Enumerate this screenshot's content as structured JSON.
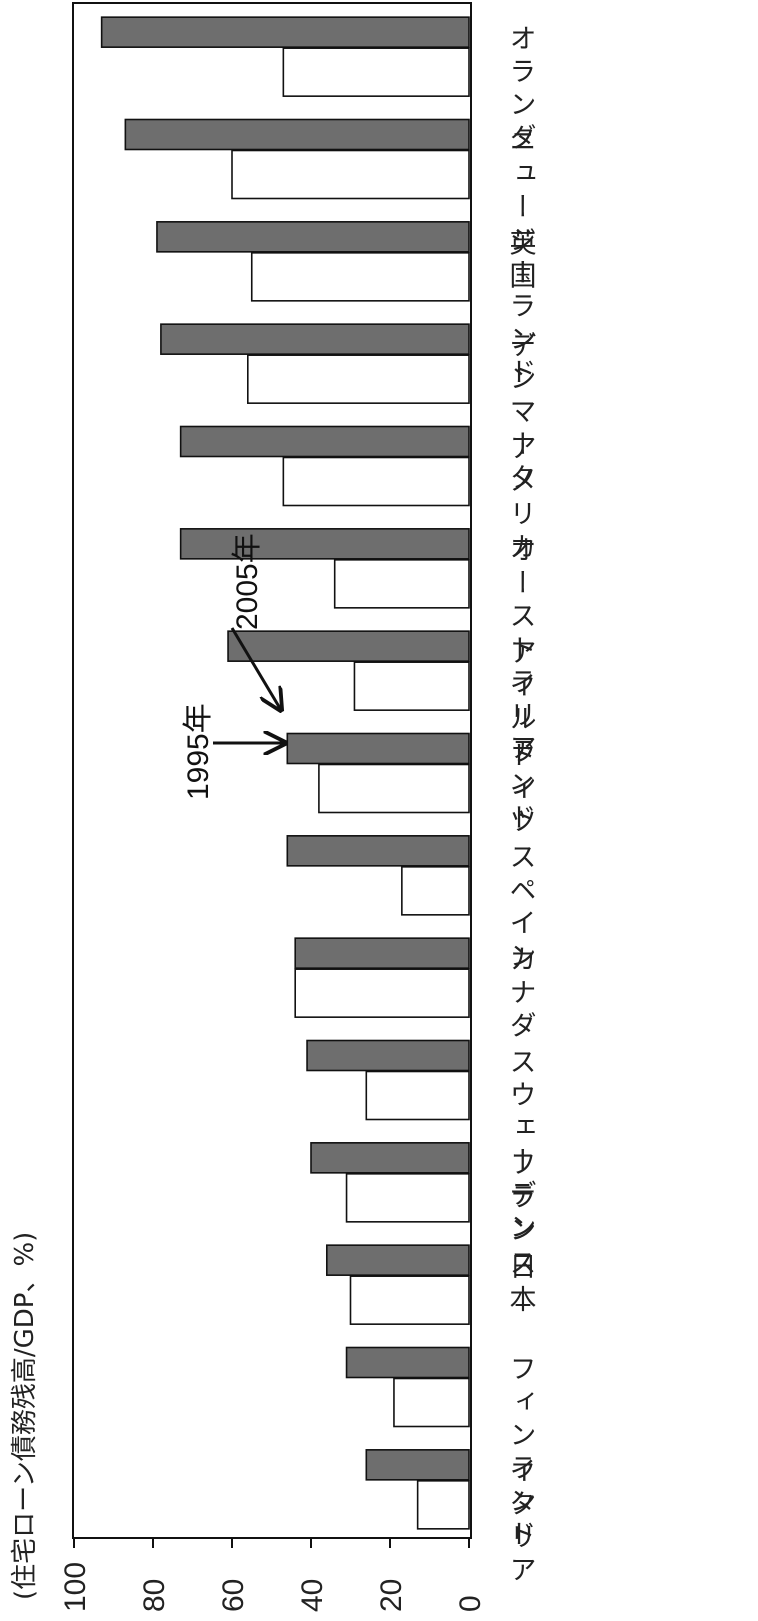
{
  "chart_data": {
    "type": "bar",
    "orientation": "horizontal",
    "title": "",
    "ylabel": "(住宅ローン債務残高/GDP、%)",
    "xlim": [
      0,
      100
    ],
    "ticks": [
      "100",
      "80",
      "60",
      "40",
      "20",
      "0"
    ],
    "tick_values": [
      100,
      80,
      60,
      40,
      20,
      0
    ],
    "categories": [
      "オランダ",
      "ニュージーランド",
      "英国",
      "デンマーク",
      "アメリカ",
      "オーストラリア",
      "アイルランド",
      "ドイツ",
      "スペイン",
      "カナダ",
      "スウェーデン",
      "フランス",
      "日本",
      "フィンランド",
      "イタリア"
    ],
    "series": [
      {
        "name": "1995年",
        "color": "#ffffff",
        "values": [
          47,
          60,
          55,
          56,
          47,
          34,
          29,
          38,
          17,
          44,
          26,
          31,
          30,
          19,
          13
        ]
      },
      {
        "name": "2005年",
        "color": "#6e6e6e",
        "values": [
          93,
          87,
          79,
          78,
          73,
          73,
          61,
          46,
          46,
          44,
          41,
          40,
          36,
          31,
          26
        ]
      }
    ],
    "annotations": [
      "1995年",
      "2005年"
    ],
    "grid": false
  }
}
